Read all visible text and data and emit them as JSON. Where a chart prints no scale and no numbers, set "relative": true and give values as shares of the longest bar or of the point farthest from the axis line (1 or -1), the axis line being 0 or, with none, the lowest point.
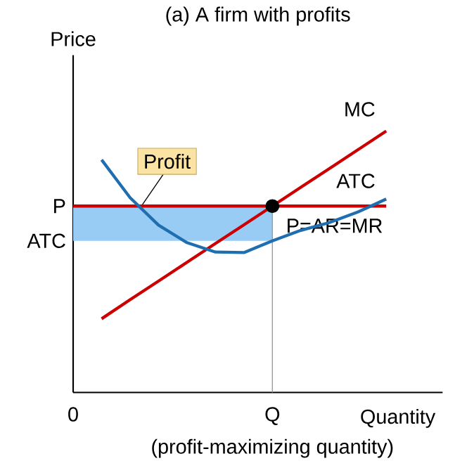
{
  "chart_data": {
    "type": "line",
    "title": "(a) A firm with profits",
    "ylabel": "Price",
    "xlabel": "Quantity",
    "relative": true,
    "categories": [
      "0",
      null,
      null,
      null,
      null,
      null,
      null,
      "Q",
      null,
      null,
      null,
      null
    ],
    "annotations": [
      "P",
      "ATC",
      "(profit-maximizing quantity)"
    ],
    "ref_lines": [
      {
        "axis": "x",
        "value": "Q",
        "color": "#999999"
      }
    ],
    "bands": [
      {
        "axis": "y",
        "from": 0.58,
        "to": 0.713,
        "label": "Profit",
        "color": "#99ccf5"
      }
    ],
    "series": [
      {
        "name": "P=AR=MR",
        "color": "#cc0000",
        "values": [
          0.713,
          0.713,
          0.713,
          0.713,
          0.713,
          0.713,
          0.713,
          0.713,
          0.713,
          0.713,
          0.713,
          0.713
        ]
      },
      {
        "name": "MC",
        "color": "#cc0000",
        "values": [
          null,
          0.282,
          0.355,
          0.426,
          0.498,
          0.57,
          0.641,
          0.713,
          0.785,
          0.856,
          0.928,
          1
        ]
      },
      {
        "name": "ATC",
        "color": "#1f6eb0",
        "values": [
          null,
          0.89,
          0.745,
          0.64,
          0.573,
          0.537,
          0.535,
          0.58,
          0.62,
          0.65,
          0.69,
          0.74
        ]
      },
      {
        "type": "scatter",
        "color": "#000000",
        "marker": "circle",
        "x": [
          "Q"
        ],
        "values": [
          0.713
        ]
      }
    ]
  }
}
